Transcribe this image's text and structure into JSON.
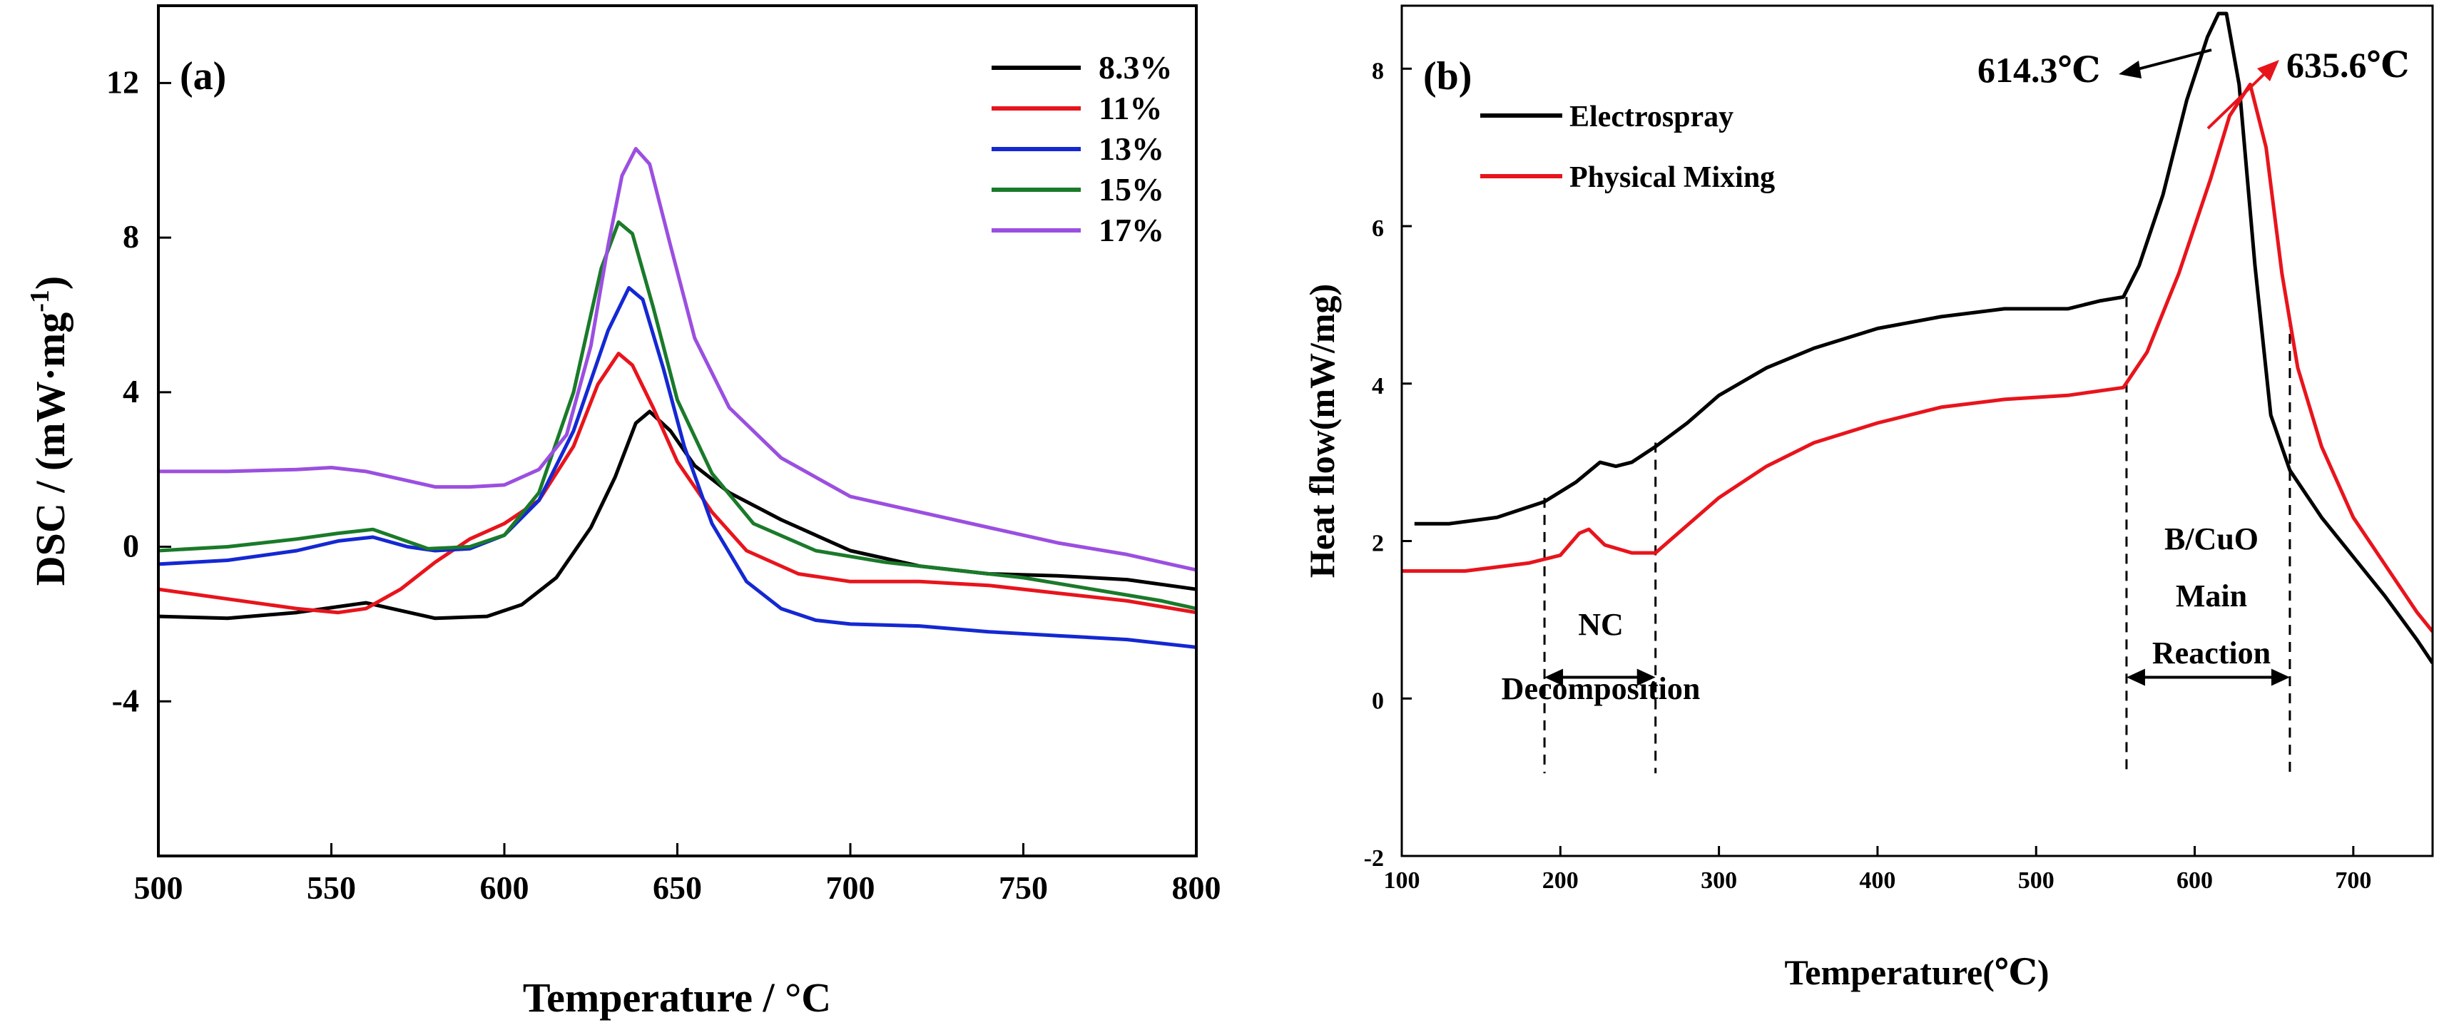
{
  "chart_data": [
    {
      "panel": "(a)",
      "type": "line",
      "title": "",
      "xlabel": "Temperature / °C",
      "ylabel": "DSC / (mW·mg",
      "ylabel_sup": "-1",
      "ylabel_close": ")",
      "xlim": [
        500,
        800
      ],
      "ylim": [
        -8,
        14
      ],
      "xticks": [
        500,
        550,
        600,
        650,
        700,
        750,
        800
      ],
      "xtick_labels": [
        "500",
        "550",
        "600",
        "650",
        "700",
        "750",
        "800"
      ],
      "yticks": [
        -4,
        0,
        4,
        8,
        12
      ],
      "ytick_labels": [
        "-4",
        "0",
        "4",
        "8",
        "12"
      ],
      "legend_position": "top-right",
      "series": [
        {
          "name": "8.3%",
          "color": "#000000",
          "points": [
            [
              500,
              -1.8
            ],
            [
              520,
              -1.85
            ],
            [
              540,
              -1.7
            ],
            [
              552,
              -1.55
            ],
            [
              560,
              -1.45
            ],
            [
              570,
              -1.65
            ],
            [
              580,
              -1.85
            ],
            [
              595,
              -1.8
            ],
            [
              605,
              -1.5
            ],
            [
              615,
              -0.8
            ],
            [
              625,
              0.5
            ],
            [
              632,
              1.8
            ],
            [
              638,
              3.2
            ],
            [
              642,
              3.5
            ],
            [
              648,
              3.0
            ],
            [
              655,
              2.1
            ],
            [
              665,
              1.4
            ],
            [
              680,
              0.7
            ],
            [
              700,
              -0.1
            ],
            [
              720,
              -0.5
            ],
            [
              740,
              -0.7
            ],
            [
              760,
              -0.75
            ],
            [
              780,
              -0.85
            ],
            [
              800,
              -1.1
            ]
          ]
        },
        {
          "name": "11%",
          "color": "#e8141c",
          "points": [
            [
              500,
              -1.1
            ],
            [
              520,
              -1.35
            ],
            [
              540,
              -1.6
            ],
            [
              552,
              -1.7
            ],
            [
              560,
              -1.6
            ],
            [
              570,
              -1.1
            ],
            [
              580,
              -0.4
            ],
            [
              590,
              0.2
            ],
            [
              600,
              0.6
            ],
            [
              610,
              1.2
            ],
            [
              620,
              2.6
            ],
            [
              627,
              4.2
            ],
            [
              633,
              5.0
            ],
            [
              637,
              4.7
            ],
            [
              643,
              3.6
            ],
            [
              650,
              2.2
            ],
            [
              660,
              0.9
            ],
            [
              670,
              -0.1
            ],
            [
              685,
              -0.7
            ],
            [
              700,
              -0.9
            ],
            [
              720,
              -0.9
            ],
            [
              740,
              -1.0
            ],
            [
              760,
              -1.2
            ],
            [
              780,
              -1.4
            ],
            [
              800,
              -1.7
            ]
          ]
        },
        {
          "name": "13%",
          "color": "#1428d2",
          "points": [
            [
              500,
              -0.45
            ],
            [
              520,
              -0.35
            ],
            [
              540,
              -0.1
            ],
            [
              552,
              0.15
            ],
            [
              562,
              0.25
            ],
            [
              572,
              0.0
            ],
            [
              580,
              -0.1
            ],
            [
              590,
              -0.05
            ],
            [
              600,
              0.3
            ],
            [
              610,
              1.2
            ],
            [
              620,
              3.0
            ],
            [
              630,
              5.6
            ],
            [
              636,
              6.7
            ],
            [
              640,
              6.4
            ],
            [
              646,
              4.6
            ],
            [
              652,
              2.6
            ],
            [
              660,
              0.6
            ],
            [
              670,
              -0.9
            ],
            [
              680,
              -1.6
            ],
            [
              690,
              -1.9
            ],
            [
              700,
              -2.0
            ],
            [
              720,
              -2.05
            ],
            [
              740,
              -2.2
            ],
            [
              760,
              -2.3
            ],
            [
              780,
              -2.4
            ],
            [
              800,
              -2.6
            ]
          ]
        },
        {
          "name": "15%",
          "color": "#1a7a2a",
          "points": [
            [
              500,
              -0.1
            ],
            [
              520,
              0.0
            ],
            [
              540,
              0.2
            ],
            [
              552,
              0.35
            ],
            [
              562,
              0.45
            ],
            [
              570,
              0.2
            ],
            [
              578,
              -0.05
            ],
            [
              590,
              0.0
            ],
            [
              600,
              0.3
            ],
            [
              610,
              1.4
            ],
            [
              620,
              4.0
            ],
            [
              628,
              7.2
            ],
            [
              633,
              8.4
            ],
            [
              637,
              8.1
            ],
            [
              643,
              6.2
            ],
            [
              650,
              3.8
            ],
            [
              660,
              1.9
            ],
            [
              672,
              0.6
            ],
            [
              690,
              -0.1
            ],
            [
              710,
              -0.4
            ],
            [
              730,
              -0.6
            ],
            [
              750,
              -0.8
            ],
            [
              770,
              -1.1
            ],
            [
              790,
              -1.4
            ],
            [
              800,
              -1.6
            ]
          ]
        },
        {
          "name": "17%",
          "color": "#9b4fe0",
          "points": [
            [
              500,
              1.95
            ],
            [
              520,
              1.95
            ],
            [
              540,
              2.0
            ],
            [
              550,
              2.05
            ],
            [
              560,
              1.95
            ],
            [
              570,
              1.75
            ],
            [
              580,
              1.55
            ],
            [
              590,
              1.55
            ],
            [
              600,
              1.6
            ],
            [
              610,
              2.0
            ],
            [
              618,
              2.9
            ],
            [
              625,
              5.2
            ],
            [
              630,
              7.8
            ],
            [
              634,
              9.6
            ],
            [
              638,
              10.3
            ],
            [
              642,
              9.9
            ],
            [
              648,
              7.8
            ],
            [
              655,
              5.4
            ],
            [
              665,
              3.6
            ],
            [
              680,
              2.3
            ],
            [
              700,
              1.3
            ],
            [
              720,
              0.9
            ],
            [
              740,
              0.5
            ],
            [
              760,
              0.1
            ],
            [
              780,
              -0.2
            ],
            [
              800,
              -0.6
            ]
          ]
        }
      ]
    },
    {
      "panel": "(b)",
      "type": "line",
      "title": "",
      "xlabel": "Temperature(℃)",
      "ylabel": "Heat flow(mW/mg)",
      "xlim": [
        100,
        750
      ],
      "ylim": [
        -2,
        8.8
      ],
      "xticks": [
        100,
        200,
        300,
        400,
        500,
        600,
        700
      ],
      "xtick_labels": [
        "100",
        "200",
        "300",
        "400",
        "500",
        "600",
        "700"
      ],
      "yticks": [
        -2,
        0,
        2,
        4,
        6,
        8
      ],
      "ytick_labels": [
        "-2",
        "0",
        "2",
        "4",
        "6",
        "8"
      ],
      "legend_position": "top-left",
      "series": [
        {
          "name": "Electrospray",
          "color": "#000000",
          "points": [
            [
              108,
              2.22
            ],
            [
              130,
              2.22
            ],
            [
              160,
              2.3
            ],
            [
              190,
              2.5
            ],
            [
              210,
              2.75
            ],
            [
              225,
              3.0
            ],
            [
              235,
              2.95
            ],
            [
              245,
              3.0
            ],
            [
              260,
              3.2
            ],
            [
              280,
              3.5
            ],
            [
              300,
              3.85
            ],
            [
              330,
              4.2
            ],
            [
              360,
              4.45
            ],
            [
              400,
              4.7
            ],
            [
              440,
              4.85
            ],
            [
              480,
              4.95
            ],
            [
              520,
              4.95
            ],
            [
              540,
              5.05
            ],
            [
              555,
              5.1
            ],
            [
              565,
              5.5
            ],
            [
              580,
              6.4
            ],
            [
              595,
              7.6
            ],
            [
              608,
              8.4
            ],
            [
              615,
              8.7
            ],
            [
              620,
              8.7
            ],
            [
              628,
              7.8
            ],
            [
              638,
              5.5
            ],
            [
              648,
              3.6
            ],
            [
              660,
              2.9
            ],
            [
              680,
              2.3
            ],
            [
              700,
              1.8
            ],
            [
              720,
              1.3
            ],
            [
              740,
              0.75
            ],
            [
              750,
              0.45
            ]
          ]
        },
        {
          "name": "Physical Mixing",
          "color": "#e8141c",
          "points": [
            [
              100,
              1.62
            ],
            [
              140,
              1.62
            ],
            [
              180,
              1.72
            ],
            [
              200,
              1.82
            ],
            [
              212,
              2.1
            ],
            [
              218,
              2.15
            ],
            [
              228,
              1.95
            ],
            [
              245,
              1.85
            ],
            [
              260,
              1.85
            ],
            [
              280,
              2.2
            ],
            [
              300,
              2.55
            ],
            [
              330,
              2.95
            ],
            [
              360,
              3.25
            ],
            [
              400,
              3.5
            ],
            [
              440,
              3.7
            ],
            [
              480,
              3.8
            ],
            [
              520,
              3.85
            ],
            [
              555,
              3.95
            ],
            [
              570,
              4.4
            ],
            [
              590,
              5.4
            ],
            [
              610,
              6.6
            ],
            [
              622,
              7.4
            ],
            [
              635,
              7.8
            ],
            [
              645,
              7.0
            ],
            [
              655,
              5.4
            ],
            [
              665,
              4.2
            ],
            [
              680,
              3.2
            ],
            [
              700,
              2.3
            ],
            [
              720,
              1.7
            ],
            [
              740,
              1.1
            ],
            [
              750,
              0.85
            ]
          ]
        }
      ],
      "annotations": {
        "peak_electrospray": "614.3℃",
        "peak_physical": "635.6℃",
        "nc_line1": "NC",
        "nc_line2": "Decomposition",
        "bcuo_line1": "B/CuO",
        "bcuo_line2": "Main",
        "bcuo_line3": "Reaction",
        "nc_range": [
          190,
          260
        ],
        "bcuo_range": [
          557,
          660
        ]
      }
    }
  ]
}
